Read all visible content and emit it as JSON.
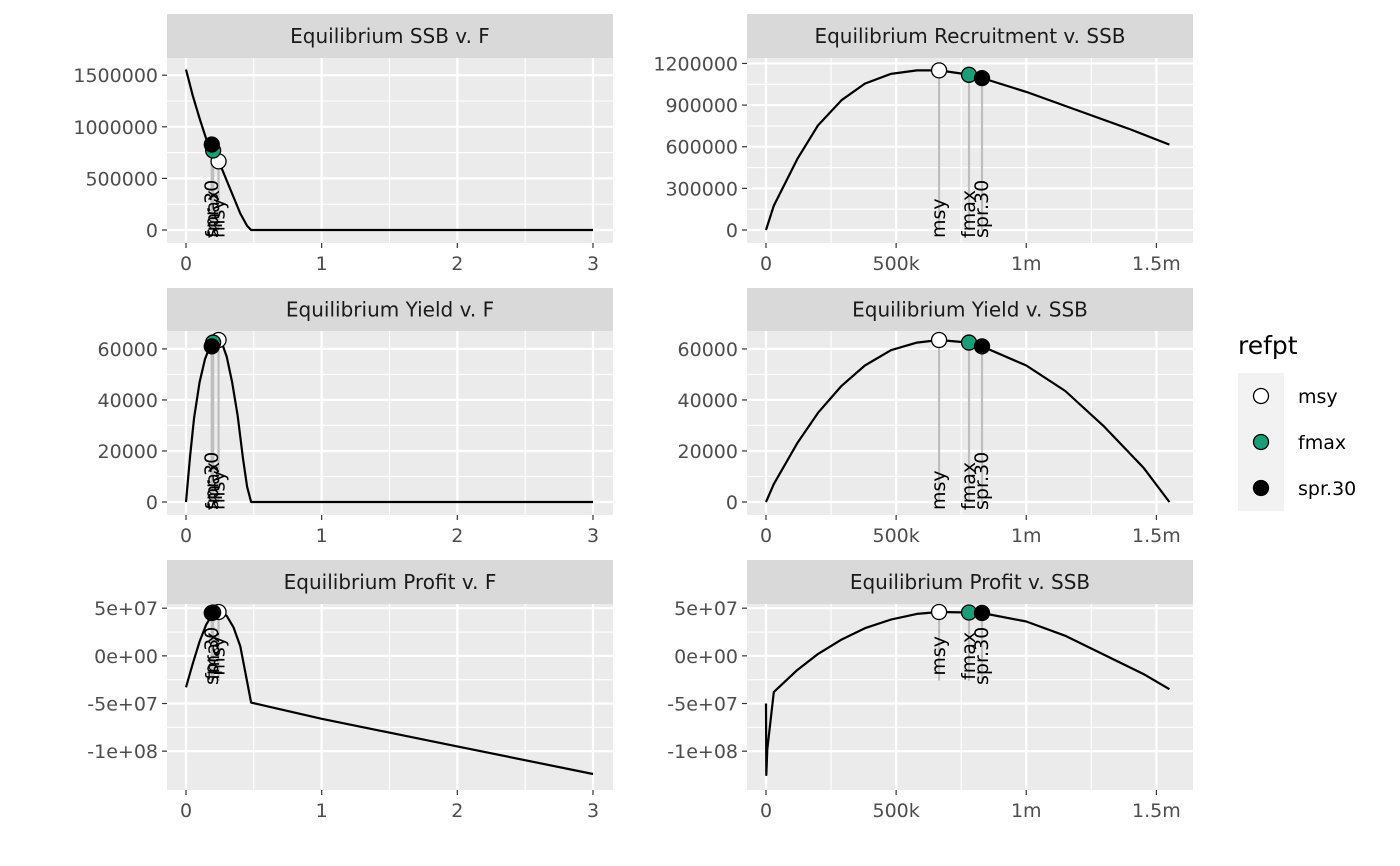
{
  "chart_data": [
    {
      "type": "line",
      "title": "Equilibrium SSB v. F",
      "xlim": [
        0,
        3
      ],
      "ylim": [
        0,
        1560000
      ],
      "x_ticks": [
        {
          "v": 0,
          "label": "0"
        },
        {
          "v": 1,
          "label": "1"
        },
        {
          "v": 2,
          "label": "2"
        },
        {
          "v": 3,
          "label": "3"
        }
      ],
      "y_ticks": [
        {
          "v": 0,
          "label": "0"
        },
        {
          "v": 500000,
          "label": "500000"
        },
        {
          "v": 1000000,
          "label": "1000000"
        },
        {
          "v": 1500000,
          "label": "1500000"
        }
      ],
      "x": [
        0,
        0.05,
        0.1,
        0.15,
        0.2,
        0.25,
        0.3,
        0.35,
        0.4,
        0.45,
        0.48,
        0.5,
        1,
        2,
        3
      ],
      "y": [
        1555000,
        1300000,
        1080000,
        880000,
        760000,
        640000,
        480000,
        320000,
        160000,
        40000,
        0,
        0,
        0,
        0,
        0
      ],
      "ref_points": [
        {
          "refpt": "msy",
          "x": 0.24,
          "y": 665000
        },
        {
          "refpt": "fmax",
          "x": 0.2,
          "y": 770000
        },
        {
          "refpt": "spr.30",
          "x": 0.19,
          "y": 828000
        }
      ],
      "annotations": [
        {
          "text": "msy",
          "x": 0.24
        },
        {
          "text": "fmax",
          "x": 0.2
        },
        {
          "text": "spr.30",
          "x": 0.19
        }
      ]
    },
    {
      "type": "line",
      "title": "Equilibrium Recruitment v. SSB",
      "xlim": [
        0,
        1560000
      ],
      "ylim": [
        0,
        1160000
      ],
      "x_ticks": [
        {
          "v": 0,
          "label": "0"
        },
        {
          "v": 500000,
          "label": "500k"
        },
        {
          "v": 1000000,
          "label": "1m"
        },
        {
          "v": 1500000,
          "label": "1.5m"
        }
      ],
      "y_ticks": [
        {
          "v": 0,
          "label": "0"
        },
        {
          "v": 300000,
          "label": "300000"
        },
        {
          "v": 600000,
          "label": "600000"
        },
        {
          "v": 900000,
          "label": "900000"
        },
        {
          "v": 1200000,
          "label": "1200000"
        }
      ],
      "x": [
        0,
        30000,
        120000,
        200000,
        290000,
        380000,
        480000,
        580000,
        665000,
        780000,
        830000,
        1000000,
        1200000,
        1400000,
        1550000
      ],
      "y": [
        0,
        175000,
        510000,
        755000,
        935000,
        1055000,
        1125000,
        1150000,
        1150000,
        1120000,
        1095000,
        995000,
        860000,
        725000,
        615000
      ],
      "ref_points": [
        {
          "refpt": "msy",
          "x": 665000,
          "y": 1150000
        },
        {
          "refpt": "fmax",
          "x": 780000,
          "y": 1118000
        },
        {
          "refpt": "spr.30",
          "x": 830000,
          "y": 1094000
        }
      ],
      "annotations": [
        {
          "text": "msy",
          "x": 665000
        },
        {
          "text": "fmax",
          "x": 780000
        },
        {
          "text": "spr.30",
          "x": 830000
        }
      ]
    },
    {
      "type": "line",
      "title": "Equilibrium Yield v. F",
      "xlim": [
        0,
        3
      ],
      "ylim": [
        0,
        63500
      ],
      "x_ticks": [
        {
          "v": 0,
          "label": "0"
        },
        {
          "v": 1,
          "label": "1"
        },
        {
          "v": 2,
          "label": "2"
        },
        {
          "v": 3,
          "label": "3"
        }
      ],
      "y_ticks": [
        {
          "v": 0,
          "label": "0"
        },
        {
          "v": 20000,
          "label": "20000"
        },
        {
          "v": 40000,
          "label": "40000"
        },
        {
          "v": 60000,
          "label": "60000"
        }
      ],
      "x": [
        0,
        0.03,
        0.06,
        0.1,
        0.14,
        0.18,
        0.22,
        0.26,
        0.3,
        0.34,
        0.38,
        0.42,
        0.45,
        0.48,
        0.5,
        1,
        2,
        3
      ],
      "y": [
        0,
        18000,
        33000,
        47000,
        56000,
        61500,
        63500,
        63000,
        57000,
        47000,
        34000,
        17000,
        6000,
        0,
        0,
        0,
        0,
        0
      ],
      "ref_points": [
        {
          "refpt": "msy",
          "x": 0.24,
          "y": 63500
        },
        {
          "refpt": "fmax",
          "x": 0.2,
          "y": 62500
        },
        {
          "refpt": "spr.30",
          "x": 0.19,
          "y": 61000
        }
      ],
      "annotations": [
        {
          "text": "msy",
          "x": 0.24
        },
        {
          "text": "fmax",
          "x": 0.2
        },
        {
          "text": "spr.30",
          "x": 0.19
        }
      ]
    },
    {
      "type": "line",
      "title": "Equilibrium Yield v. SSB",
      "xlim": [
        0,
        1560000
      ],
      "ylim": [
        0,
        63500
      ],
      "x_ticks": [
        {
          "v": 0,
          "label": "0"
        },
        {
          "v": 500000,
          "label": "500k"
        },
        {
          "v": 1000000,
          "label": "1m"
        },
        {
          "v": 1500000,
          "label": "1.5m"
        }
      ],
      "y_ticks": [
        {
          "v": 0,
          "label": "0"
        },
        {
          "v": 20000,
          "label": "20000"
        },
        {
          "v": 40000,
          "label": "40000"
        },
        {
          "v": 60000,
          "label": "60000"
        }
      ],
      "x": [
        0,
        30000,
        120000,
        200000,
        290000,
        380000,
        480000,
        580000,
        665000,
        780000,
        830000,
        1000000,
        1150000,
        1300000,
        1450000,
        1550000
      ],
      "y": [
        0,
        7000,
        23000,
        35000,
        45500,
        53500,
        59500,
        62500,
        63500,
        62500,
        61000,
        53500,
        43500,
        29500,
        13500,
        0
      ],
      "ref_points": [
        {
          "refpt": "msy",
          "x": 665000,
          "y": 63500
        },
        {
          "refpt": "fmax",
          "x": 780000,
          "y": 62500
        },
        {
          "refpt": "spr.30",
          "x": 830000,
          "y": 61000
        }
      ],
      "annotations": [
        {
          "text": "msy",
          "x": 665000
        },
        {
          "text": "fmax",
          "x": 780000
        },
        {
          "text": "spr.30",
          "x": 830000
        }
      ]
    },
    {
      "type": "line",
      "title": "Equilibrium Profit v. F",
      "xlim": [
        0,
        3
      ],
      "ylim": [
        -125000000,
        46000000
      ],
      "x_ticks": [
        {
          "v": 0,
          "label": "0"
        },
        {
          "v": 1,
          "label": "1"
        },
        {
          "v": 2,
          "label": "2"
        },
        {
          "v": 3,
          "label": "3"
        }
      ],
      "y_ticks": [
        {
          "v": -100000000,
          "label": "-1e+08"
        },
        {
          "v": -50000000,
          "label": "-5e+07"
        },
        {
          "v": 0,
          "label": "0e+00"
        },
        {
          "v": 50000000,
          "label": "5e+07"
        }
      ],
      "x": [
        0,
        0.05,
        0.1,
        0.15,
        0.2,
        0.25,
        0.3,
        0.35,
        0.4,
        0.45,
        0.48,
        1,
        2,
        3
      ],
      "y": [
        -33000000,
        -8000000,
        15000000,
        33000000,
        44500000,
        46000000,
        42000000,
        30000000,
        10000000,
        -27000000,
        -49000000,
        -66000000,
        -95000000,
        -124000000
      ],
      "ref_points": [
        {
          "refpt": "msy",
          "x": 0.24,
          "y": 46000000
        },
        {
          "refpt": "fmax",
          "x": 0.2,
          "y": 45500000
        },
        {
          "refpt": "spr.30",
          "x": 0.19,
          "y": 45000000
        }
      ],
      "annotations": [
        {
          "text": "msy",
          "x": 0.24
        },
        {
          "text": "fmax",
          "x": 0.2
        },
        {
          "text": "spr.30",
          "x": 0.19
        }
      ]
    },
    {
      "type": "line",
      "title": "Equilibrium Profit v. SSB",
      "xlim": [
        0,
        1560000
      ],
      "ylim": [
        -125000000,
        46000000
      ],
      "x_ticks": [
        {
          "v": 0,
          "label": "0"
        },
        {
          "v": 500000,
          "label": "500k"
        },
        {
          "v": 1000000,
          "label": "1m"
        },
        {
          "v": 1500000,
          "label": "1.5m"
        }
      ],
      "y_ticks": [
        {
          "v": -100000000,
          "label": "-1e+08"
        },
        {
          "v": -50000000,
          "label": "-5e+07"
        },
        {
          "v": 0,
          "label": "0e+00"
        },
        {
          "v": 50000000,
          "label": "5e+07"
        }
      ],
      "x": [
        0,
        1000,
        5000,
        30000,
        120000,
        200000,
        290000,
        380000,
        480000,
        580000,
        665000,
        780000,
        830000,
        1000000,
        1150000,
        1300000,
        1450000,
        1550000
      ],
      "y": [
        -50000000,
        -125000000,
        -98000000,
        -38000000,
        -15000000,
        2000000,
        17000000,
        29000000,
        38000000,
        44000000,
        46000000,
        45500000,
        45000000,
        36000000,
        21000000,
        1000000,
        -19000000,
        -35000000
      ],
      "ref_points": [
        {
          "refpt": "msy",
          "x": 665000,
          "y": 46000000
        },
        {
          "refpt": "fmax",
          "x": 780000,
          "y": 45500000
        },
        {
          "refpt": "spr.30",
          "x": 830000,
          "y": 45000000
        }
      ],
      "annotations": [
        {
          "text": "msy",
          "x": 665000
        },
        {
          "text": "fmax",
          "x": 780000
        },
        {
          "text": "spr.30",
          "x": 830000
        }
      ]
    }
  ],
  "legend": {
    "title": "refpt",
    "items": [
      {
        "label": "msy",
        "fill": "#ffffff"
      },
      {
        "label": "fmax",
        "fill": "#1b9e77"
      },
      {
        "label": "spr.30",
        "fill": "#000000"
      }
    ]
  },
  "colors": {
    "panel_bg": "#ebebeb",
    "strip_bg": "#d9d9d9",
    "grid": "#ffffff",
    "line": "#000000",
    "refline": "#bebebe",
    "msy": "#ffffff",
    "fmax": "#1b9e77",
    "spr30": "#000000"
  }
}
